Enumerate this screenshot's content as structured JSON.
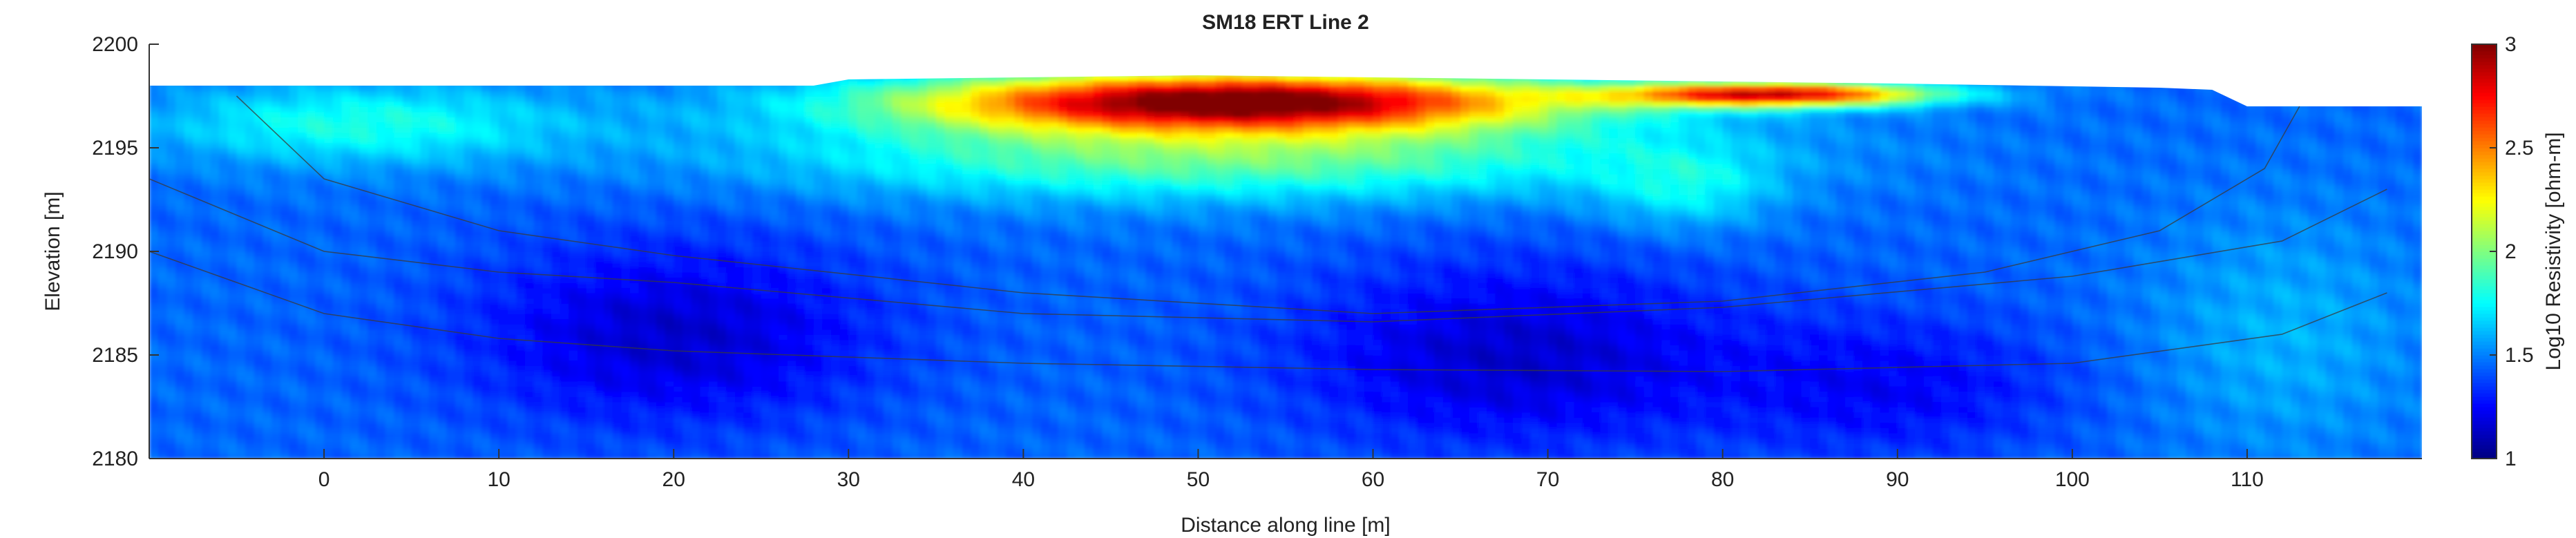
{
  "chart_data": {
    "type": "heatmap",
    "title": "SM18 ERT Line 2",
    "xlabel": "Distance along line [m]",
    "ylabel": "Elevation [m]",
    "colorbar_label": "Log10 Resistivity [ohm-m]",
    "colormap": "jet",
    "xlim": [
      -10,
      120
    ],
    "ylim": [
      2180,
      2200
    ],
    "clim": [
      1,
      3
    ],
    "x_ticks": [
      0,
      10,
      20,
      30,
      40,
      50,
      60,
      70,
      80,
      90,
      100,
      110
    ],
    "y_ticks": [
      2180,
      2185,
      2190,
      2195,
      2200
    ],
    "colorbar_ticks": [
      1,
      1.5,
      2,
      2.5,
      3
    ],
    "grid": false,
    "surface_topography": [
      {
        "x": -10,
        "elev": 2198.0
      },
      {
        "x": 28,
        "elev": 2198.0
      },
      {
        "x": 30,
        "elev": 2198.3
      },
      {
        "x": 50,
        "elev": 2198.5
      },
      {
        "x": 70,
        "elev": 2198.3
      },
      {
        "x": 90,
        "elev": 2198.1
      },
      {
        "x": 105,
        "elev": 2197.9
      },
      {
        "x": 108,
        "elev": 2197.8
      },
      {
        "x": 110,
        "elev": 2197.0
      },
      {
        "x": 120,
        "elev": 2197.0
      }
    ],
    "anomalies": [
      {
        "kind": "high",
        "x_center": 52,
        "elev_center": 2197.3,
        "x_half_width": 18,
        "elev_half_width": 1.4,
        "peak_log10_resistivity": 3.0
      },
      {
        "kind": "high",
        "x_center": 83,
        "elev_center": 2197.6,
        "x_half_width": 9,
        "elev_half_width": 0.6,
        "peak_log10_resistivity": 2.8
      },
      {
        "kind": "moderate",
        "x_center": 52,
        "elev_center": 2194.8,
        "x_half_width": 25,
        "elev_half_width": 2.2,
        "peak_log10_resistivity": 2.0
      },
      {
        "kind": "moderate",
        "x_center": 2,
        "elev_center": 2196.2,
        "x_half_width": 12,
        "elev_half_width": 2.0,
        "peak_log10_resistivity": 1.8
      },
      {
        "kind": "moderate",
        "x_center": 78,
        "elev_center": 2193.0,
        "x_half_width": 5,
        "elev_half_width": 2.0,
        "peak_log10_resistivity": 1.7
      },
      {
        "kind": "low",
        "x_center": 20,
        "elev_center": 2186.0,
        "x_half_width": 12,
        "elev_half_width": 4.5,
        "peak_log10_resistivity": 1.15
      },
      {
        "kind": "low",
        "x_center": 68,
        "elev_center": 2185.0,
        "x_half_width": 13,
        "elev_half_width": 4.5,
        "peak_log10_resistivity": 1.15
      },
      {
        "kind": "low",
        "x_center": 90,
        "elev_center": 2183.5,
        "x_half_width": 10,
        "elev_half_width": 3.5,
        "peak_log10_resistivity": 1.25
      },
      {
        "kind": "moderate",
        "x_center": 112,
        "elev_center": 2186.0,
        "x_half_width": 8,
        "elev_half_width": 6.0,
        "peak_log10_resistivity": 1.6
      }
    ],
    "background_log10_resistivity": 1.45,
    "depth_of_investigation_contours": [
      [
        {
          "x": -5,
          "elev": 2197.5
        },
        {
          "x": 0,
          "elev": 2193.5
        },
        {
          "x": 10,
          "elev": 2191.0
        },
        {
          "x": 20,
          "elev": 2189.8
        },
        {
          "x": 40,
          "elev": 2188.0
        },
        {
          "x": 60,
          "elev": 2187.0
        },
        {
          "x": 80,
          "elev": 2187.6
        },
        {
          "x": 95,
          "elev": 2189.0
        },
        {
          "x": 105,
          "elev": 2191.0
        },
        {
          "x": 111,
          "elev": 2194.0
        },
        {
          "x": 113,
          "elev": 2197.0
        }
      ],
      [
        {
          "x": -10,
          "elev": 2193.5
        },
        {
          "x": 0,
          "elev": 2190.0
        },
        {
          "x": 10,
          "elev": 2189.0
        },
        {
          "x": 20,
          "elev": 2188.5
        },
        {
          "x": 40,
          "elev": 2187.0
        },
        {
          "x": 60,
          "elev": 2186.6
        },
        {
          "x": 80,
          "elev": 2187.3
        },
        {
          "x": 100,
          "elev": 2188.8
        },
        {
          "x": 112,
          "elev": 2190.5
        },
        {
          "x": 118,
          "elev": 2193.0
        }
      ],
      [
        {
          "x": -10,
          "elev": 2190.0
        },
        {
          "x": 0,
          "elev": 2187.0
        },
        {
          "x": 10,
          "elev": 2185.8
        },
        {
          "x": 20,
          "elev": 2185.2
        },
        {
          "x": 40,
          "elev": 2184.6
        },
        {
          "x": 60,
          "elev": 2184.3
        },
        {
          "x": 80,
          "elev": 2184.2
        },
        {
          "x": 100,
          "elev": 2184.6
        },
        {
          "x": 112,
          "elev": 2186.0
        },
        {
          "x": 118,
          "elev": 2188.0
        }
      ]
    ]
  }
}
